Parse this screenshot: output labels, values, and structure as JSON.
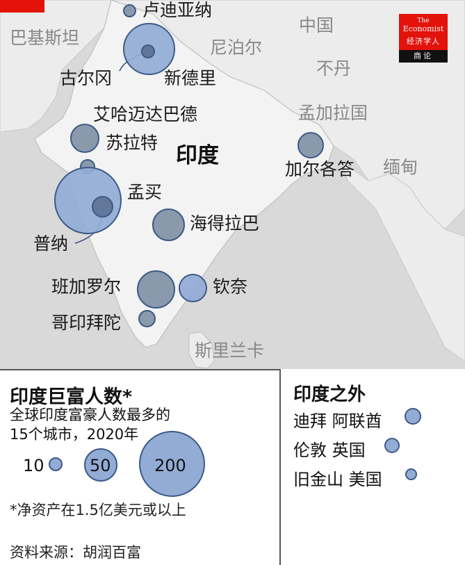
{
  "map": {
    "main_country": "印度",
    "countries": [
      "巴基斯坦",
      "中国",
      "尼泊尔",
      "不丹",
      "孟加拉国",
      "缅甸",
      "斯里兰卡"
    ],
    "cities": [
      {
        "name": "卢迪亚纳",
        "size": "small"
      },
      {
        "name": "古尔冈",
        "size": "small"
      },
      {
        "name": "新德里",
        "size": "big"
      },
      {
        "name": "艾哈迈达巴德",
        "size": "mid"
      },
      {
        "name": "苏拉特",
        "size": "small"
      },
      {
        "name": "孟买",
        "size": "big"
      },
      {
        "name": "普纳",
        "size": "small"
      },
      {
        "name": "海得拉巴",
        "size": "mid"
      },
      {
        "name": "加尔各答",
        "size": "mid"
      },
      {
        "name": "班加罗尔",
        "size": "mid"
      },
      {
        "name": "钦奈",
        "size": "mid"
      },
      {
        "name": "哥印拜陀",
        "size": "small"
      }
    ]
  },
  "legend": {
    "title": "印度巨富人数*",
    "subtitle_line1": "全球印度富豪人数最多的",
    "subtitle_line2": "15个城市，2020年",
    "scale": [
      "10",
      "50",
      "200"
    ],
    "note": "*净资产在1.5亿美元或以上",
    "source": "资料来源：胡润百富"
  },
  "outside": {
    "title": "印度之外",
    "items": [
      "迪拜 阿联酋",
      "伦敦 英国",
      "旧金山 美国"
    ]
  },
  "logo": {
    "line1": "The",
    "line2": "Economist",
    "line3": "经济学人",
    "line4": "商论"
  },
  "colors": {
    "land": "#efefef",
    "sea": "#d9d9d9",
    "bubble_fill": "#93acd6",
    "bubble_border": "#3c5a86",
    "brand_red": "#e3120b"
  }
}
